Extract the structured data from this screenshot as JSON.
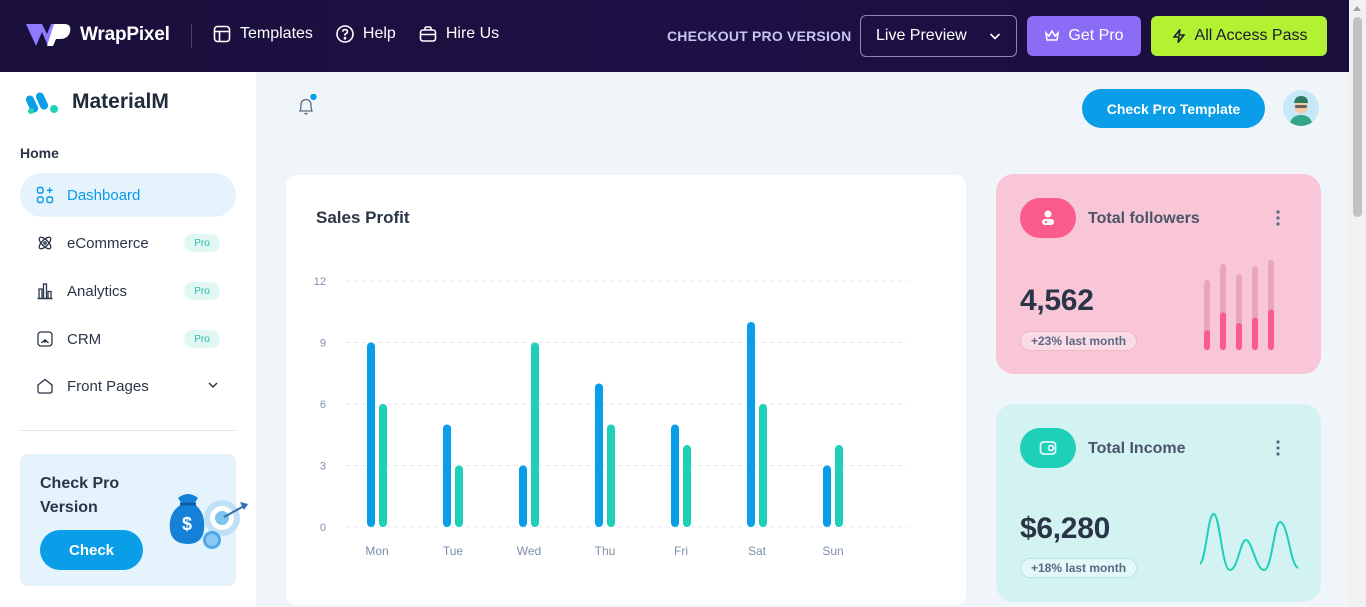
{
  "topbar": {
    "brand": "WrapPixel",
    "nav": [
      {
        "label": "Templates",
        "icon": "layout-icon"
      },
      {
        "label": "Help",
        "icon": "help-circle-icon"
      },
      {
        "label": "Hire Us",
        "icon": "briefcase-icon"
      }
    ],
    "checkout_label": "CHECKOUT PRO VERSION",
    "live_preview": "Live Preview",
    "get_pro": "Get Pro",
    "all_access": "All Access Pass"
  },
  "sidebar": {
    "brand": "MaterialM",
    "section": "Home",
    "items": [
      {
        "label": "Dashboard",
        "icon": "dashboard-icon",
        "active": true
      },
      {
        "label": "eCommerce",
        "icon": "atom-icon",
        "badge": "Pro"
      },
      {
        "label": "Analytics",
        "icon": "chart-bars-icon",
        "badge": "Pro"
      },
      {
        "label": "CRM",
        "icon": "crm-icon",
        "badge": "Pro"
      },
      {
        "label": "Front Pages",
        "icon": "home-shape-icon"
      }
    ],
    "pro_card": {
      "title": "Check Pro Version",
      "button": "Check"
    }
  },
  "header": {
    "check_pro_template": "Check Pro Template"
  },
  "sales": {
    "title": "Sales Profit"
  },
  "chart_data": {
    "type": "bar",
    "title": "Sales Profit",
    "xlabel": "",
    "ylabel": "",
    "categories": [
      "Mon",
      "Tue",
      "Wed",
      "Thu",
      "Fri",
      "Sat",
      "Sun"
    ],
    "series": [
      {
        "values": [
          9,
          5,
          3,
          7,
          5,
          10,
          3
        ]
      },
      {
        "values": [
          6,
          3,
          9,
          5,
          4,
          6,
          4
        ]
      }
    ],
    "yticks": [
      "0",
      "3",
      "6",
      "9",
      "12"
    ],
    "ylim": [
      0,
      12
    ],
    "grid": true,
    "colors": [
      "#0a9ee8",
      "#1fd0b8"
    ]
  },
  "followers": {
    "title": "Total followers",
    "value": "4,562",
    "change": "+23% last month",
    "bars_levels": [
      0.22,
      0.42,
      0.3,
      0.36,
      0.45
    ],
    "accent": "#fb5b8a"
  },
  "income": {
    "title": "Total Income",
    "value": "$6,280",
    "change": "+18% last month",
    "accent": "#1fd0b8"
  }
}
